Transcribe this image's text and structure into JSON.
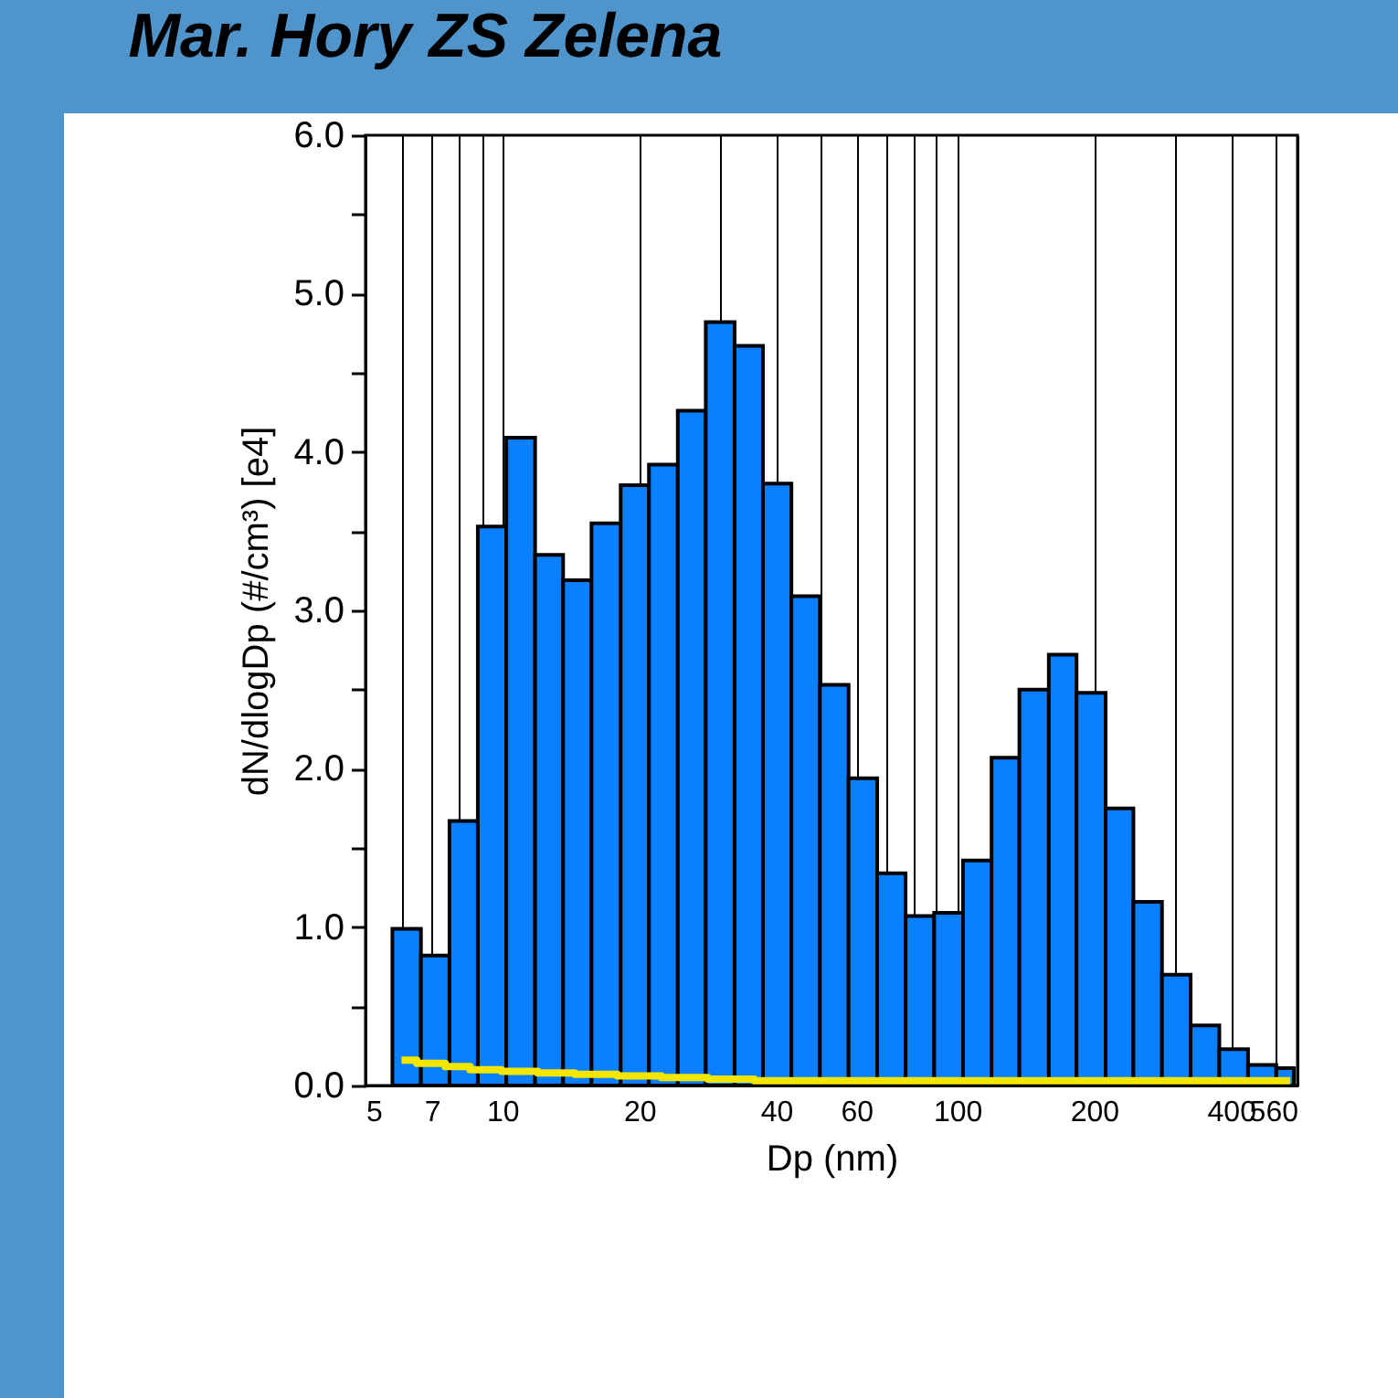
{
  "chart_data": {
    "type": "histogram",
    "title": "Mar. Hory ZS Zelena",
    "xlabel": "Dp (nm)",
    "ylabel": "dN/dlogDp (#/cm³) [e4]",
    "bins": [
      5.73,
      6.62,
      7.65,
      8.83,
      10.2,
      11.8,
      13.6,
      15.7,
      18.2,
      21.0,
      24.3,
      28.0,
      32.4,
      37.4,
      43.2,
      49.9,
      57.7,
      66.7,
      77.0,
      89.0,
      103,
      119,
      137,
      159,
      183,
      212,
      244,
      282,
      326,
      377,
      436,
      503,
      550
    ],
    "series": [
      {
        "color": "#0a80ff",
        "values": [
          0.99,
          0.82,
          1.67,
          3.53,
          4.09,
          3.35,
          3.19,
          3.55,
          3.79,
          3.92,
          4.26,
          4.82,
          4.67,
          3.8,
          3.09,
          2.53,
          1.94,
          1.34,
          1.07,
          1.09,
          1.42,
          2.07,
          2.5,
          2.72,
          2.48,
          1.75,
          1.16,
          0.7,
          0.38,
          0.23,
          0.13,
          0.11
        ]
      },
      {
        "type": "step",
        "color": "#f5e600",
        "x": [
          6,
          7,
          8,
          9,
          11,
          13,
          16,
          20,
          25,
          32,
          40,
          100,
          200,
          400,
          540
        ],
        "values": [
          0.16,
          0.14,
          0.12,
          0.1,
          0.09,
          0.08,
          0.07,
          0.06,
          0.05,
          0.04,
          0.03,
          0.03,
          0.03,
          0.03,
          0.03
        ]
      }
    ],
    "log": "x",
    "grid": "x",
    "xlim": [
      5,
      560
    ],
    "xticks": [
      5,
      {
        "value": 6,
        "label": null
      },
      7,
      {
        "value": 8,
        "label": null
      },
      {
        "value": 9,
        "label": null
      },
      10,
      20,
      {
        "value": 30,
        "label": null
      },
      40,
      {
        "value": 50,
        "label": null
      },
      60,
      {
        "value": 70,
        "label": null
      },
      {
        "value": 80,
        "label": null
      },
      {
        "value": 90,
        "label": null
      },
      100,
      200,
      {
        "value": 300,
        "label": null
      },
      400,
      {
        "value": 500,
        "label": null
      },
      560
    ],
    "ylim": [
      0,
      6
    ],
    "yticks": [
      {
        "value": 0,
        "label": "0.0"
      },
      {
        "value": 0.5,
        "label": null
      },
      {
        "value": 1,
        "label": "1.0"
      },
      {
        "value": 1.5,
        "label": null
      },
      {
        "value": 2,
        "label": "2.0"
      },
      {
        "value": 2.5,
        "label": null
      },
      {
        "value": 3,
        "label": "3.0"
      },
      {
        "value": 3.5,
        "label": null
      },
      {
        "value": 4,
        "label": "4.0"
      },
      {
        "value": 4.5,
        "label": null
      },
      {
        "value": 5,
        "label": "5.0"
      },
      {
        "value": 5.5,
        "label": null
      },
      {
        "value": 6,
        "label": "6.0"
      }
    ]
  }
}
